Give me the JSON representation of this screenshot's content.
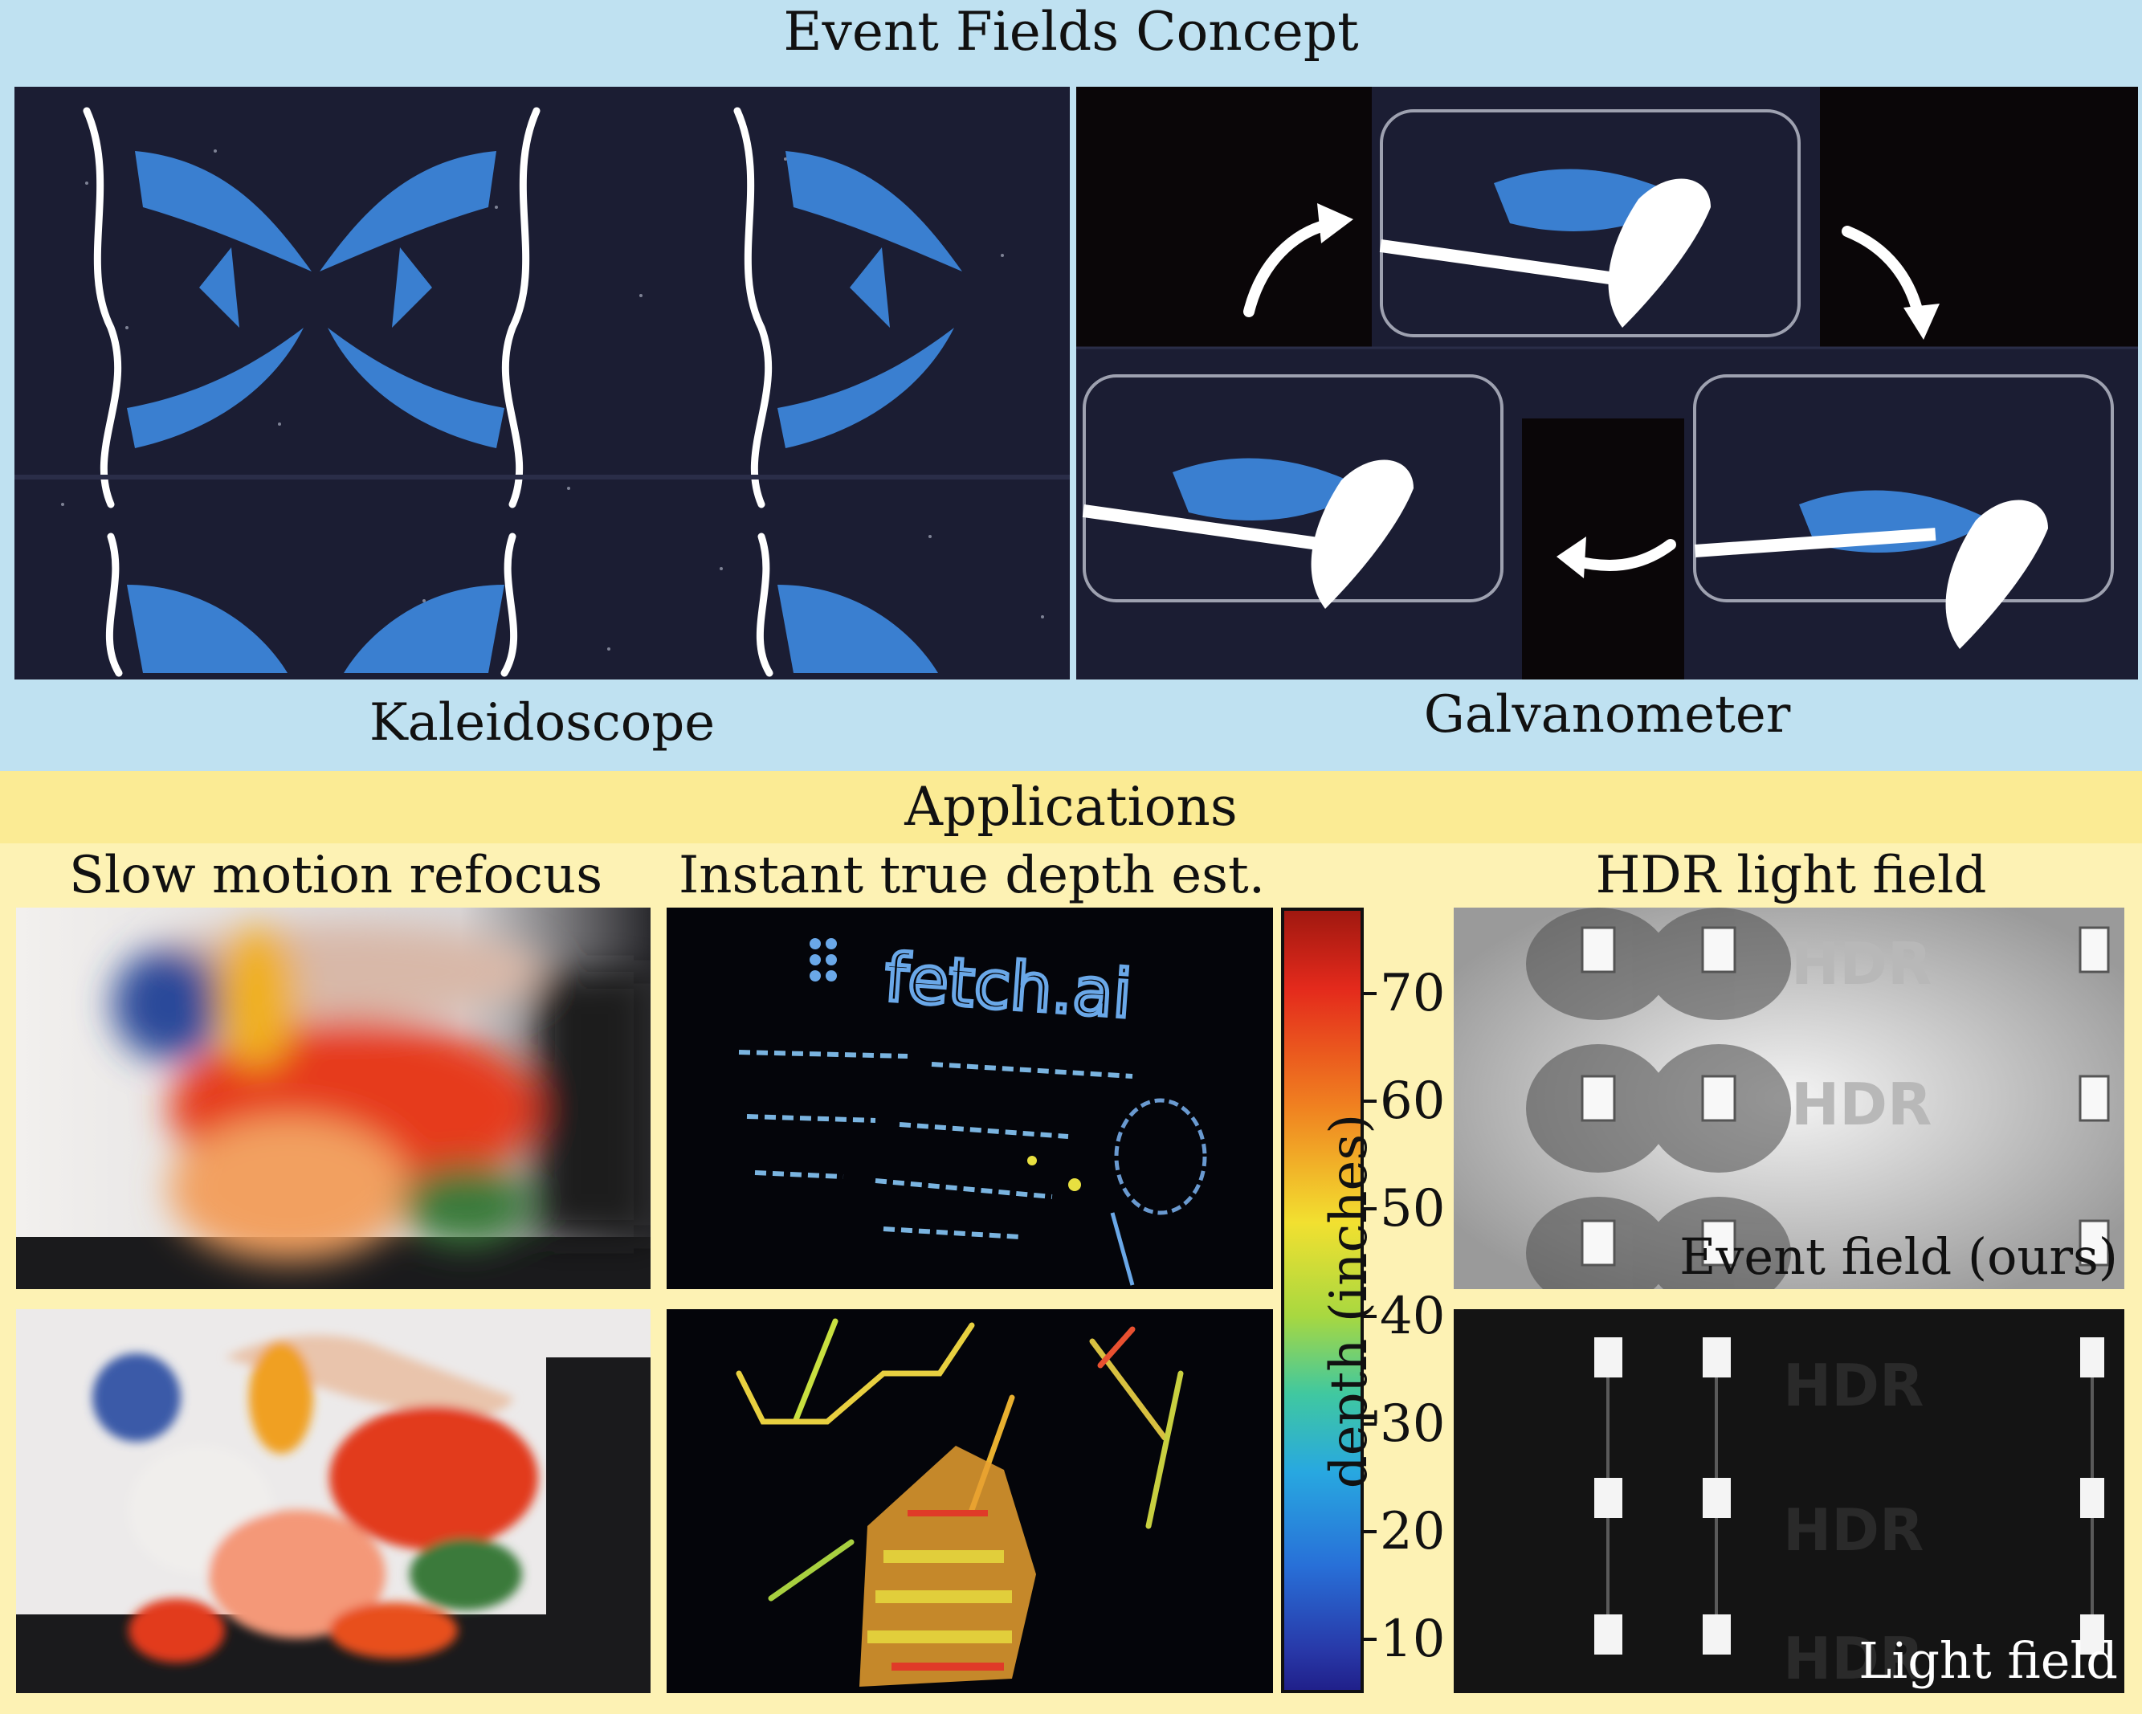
{
  "top": {
    "title": "Event Fields Concept",
    "left_label": "Kaleidoscope",
    "right_label": "Galvanometer"
  },
  "bottom": {
    "title": "Applications",
    "col1_label": "Slow motion refocus",
    "col2_label": "Instant true depth est.",
    "col3_label": "HDR light field",
    "hdr_top_caption": "Event field (ours)",
    "hdr_bottom_caption": "Light field",
    "hdr_letters": "HDR",
    "logo_text": "fetch.ai"
  },
  "colorbar": {
    "label": "depth (inches)",
    "ticks": [
      "70",
      "60",
      "50",
      "40",
      "30",
      "20",
      "10"
    ]
  },
  "colors": {
    "top_band": "#bfe1f1",
    "bottom_band": "#fdf2b4",
    "event_dark": "#1b1d33",
    "event_blue": "#3a7fd0"
  }
}
